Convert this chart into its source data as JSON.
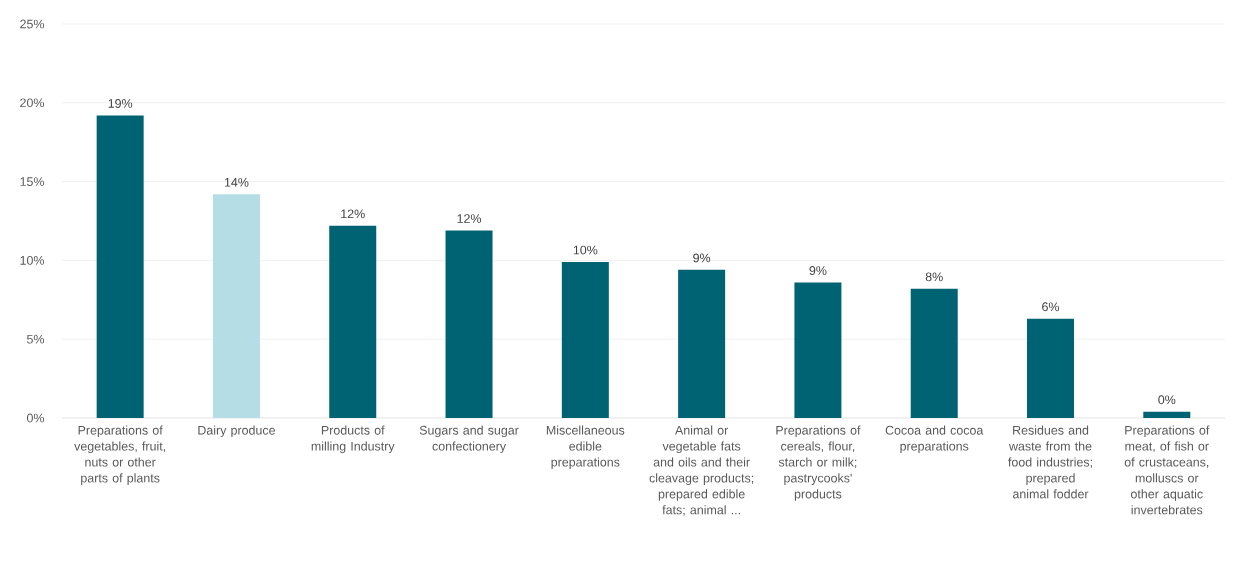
{
  "chart_data": {
    "type": "bar",
    "categories": [
      "Preparations of vegetables, fruit, nuts or other parts of plants",
      "Dairy produce",
      "Products of milling Industry",
      "Sugars and sugar confectionery",
      "Miscellaneous edible preparations",
      "Animal or vegetable fats and oils and their cleavage products; prepared edible fats; animal ...",
      "Preparations of cereals, flour, starch or milk; pastrycooks' products",
      "Cocoa and cocoa preparations",
      "Residues and waste from the food industries; prepared animal fodder",
      "Preparations of meat, of fish or of crustaceans, molluscs or other aquatic invertebrates"
    ],
    "values": [
      19.2,
      14.2,
      12.2,
      11.9,
      9.9,
      9.4,
      8.6,
      8.2,
      6.3,
      0.4
    ],
    "value_labels": [
      "19%",
      "14%",
      "12%",
      "12%",
      "10%",
      "9%",
      "9%",
      "8%",
      "6%",
      "0%"
    ],
    "colors": [
      "#006373",
      "#b4dde5",
      "#006373",
      "#006373",
      "#006373",
      "#006373",
      "#006373",
      "#006373",
      "#006373",
      "#006373"
    ],
    "ylim": [
      0,
      25
    ],
    "yticks": [
      {
        "value": 0,
        "label": "0%"
      },
      {
        "value": 5,
        "label": "5%"
      },
      {
        "value": 10,
        "label": "10%"
      },
      {
        "value": 15,
        "label": "15%"
      },
      {
        "value": 20,
        "label": "20%"
      },
      {
        "value": 25,
        "label": "25%"
      }
    ],
    "grid": "y"
  }
}
